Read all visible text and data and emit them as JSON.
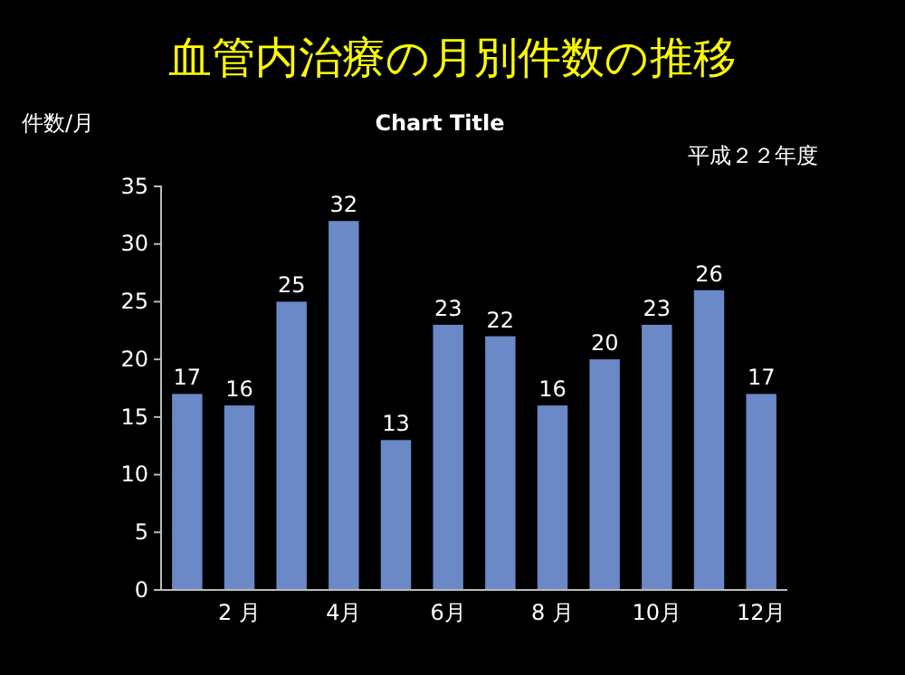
{
  "chart_data": {
    "type": "bar",
    "title": "血管内治療の月別件数の推移",
    "subtitle": "Chart Title",
    "ylabel": "件数/月",
    "annotations": [
      "平成２２年度"
    ],
    "categories": [
      null,
      "2 月",
      null,
      "4月",
      null,
      "6月",
      null,
      "8 月",
      null,
      "10月",
      null,
      "12月"
    ],
    "values": [
      17,
      16,
      25,
      32,
      13,
      23,
      22,
      16,
      20,
      23,
      26,
      17
    ],
    "color": "#6a89c6",
    "data_labels": true,
    "grid": false,
    "ylim": [
      0,
      35
    ],
    "yticks": [
      0,
      5,
      10,
      15,
      20,
      25,
      30,
      35
    ]
  }
}
